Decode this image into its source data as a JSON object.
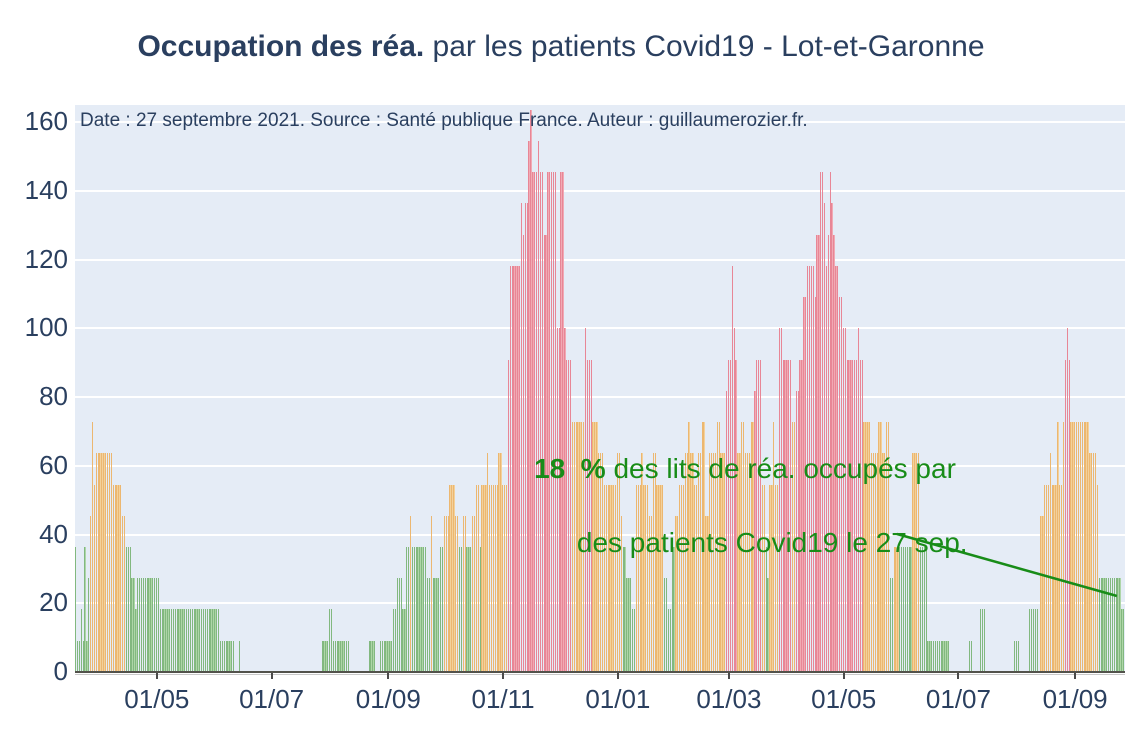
{
  "title": {
    "bold": "Occupation des réa.",
    "regular": " par les patients Covid19 - Lot-et-Garonne"
  },
  "note": "Date : 27 septembre 2021. Source : Santé publique France. Auteur : guillaumerozier.fr.",
  "annotation": {
    "bold": "18  %",
    "line1_rest": " des lits de réa. occupés par",
    "line2": "des patients Covid19 le 27 sep."
  },
  "colors": {
    "title_text": "#2a3f5f",
    "axis_text": "#2a3f5f",
    "plot_bg": "#e5ecf6",
    "gridline": "#ffffff",
    "baseline": "#52524b",
    "tick_mark": "#4a4a4a",
    "annotation_green": "#188c18",
    "trend_line": "#188c18",
    "bar_green_fill": "#aed6a8",
    "bar_green_edge": "#569b56",
    "bar_orange_fill": "#f3d19c",
    "bar_orange_edge": "#e49d44",
    "bar_red_fill": "#f1aab4",
    "bar_red_edge": "#df6379"
  },
  "chart_data": {
    "type": "bar",
    "title": "Occupation des réa. par les patients Covid19 - Lot-et-Garonne",
    "ylabel": "% des lits de réa. occupés par des patients Covid19",
    "xlabel": "",
    "grid": true,
    "legend": "none",
    "ylim": [
      0,
      165
    ],
    "yticks": [
      0,
      20,
      40,
      60,
      80,
      100,
      120,
      140,
      160
    ],
    "x_start_date": "2020-03-19",
    "x_end_date": "2021-09-27",
    "last_value_pct": 18,
    "last_value_date": "27 sep.",
    "xticks": [
      {
        "label": "01/05",
        "day": 43
      },
      {
        "label": "01/07",
        "day": 104
      },
      {
        "label": "01/09",
        "day": 166
      },
      {
        "label": "01/11",
        "day": 227
      },
      {
        "label": "01/01",
        "day": 288
      },
      {
        "label": "01/03",
        "day": 347
      },
      {
        "label": "01/05",
        "day": 408
      },
      {
        "label": "01/07",
        "day": 469
      },
      {
        "label": "01/09",
        "day": 531
      }
    ],
    "trend_line": {
      "x1": 897,
      "y1": 534,
      "x2": 1117,
      "y2": 596
    },
    "annotation_center": {
      "x": 745,
      "y": 488
    },
    "daily_segments_pct_days_color": [
      [
        36.4,
        1,
        "g"
      ],
      [
        9.1,
        2,
        "g"
      ],
      [
        18.2,
        1,
        "g"
      ],
      [
        9.1,
        1,
        "g"
      ],
      [
        36.4,
        1,
        "g"
      ],
      [
        9.1,
        1,
        "g"
      ],
      [
        27.3,
        1,
        "g"
      ],
      [
        45.5,
        1,
        "o"
      ],
      [
        72.7,
        1,
        "o"
      ],
      [
        54.5,
        1,
        "o"
      ],
      [
        63.6,
        9,
        "o"
      ],
      [
        54.5,
        5,
        "o"
      ],
      [
        45.5,
        2,
        "o"
      ],
      [
        36.4,
        3,
        "g"
      ],
      [
        27.3,
        2,
        "g"
      ],
      [
        18.2,
        1,
        "g"
      ],
      [
        27.3,
        12,
        "g"
      ],
      [
        18.2,
        32,
        "g"
      ],
      [
        9.1,
        8,
        "g"
      ],
      [
        0,
        2,
        "g"
      ],
      [
        9.1,
        1,
        "g"
      ],
      [
        0,
        43,
        "g"
      ],
      [
        9.1,
        4,
        "g"
      ],
      [
        18.2,
        2,
        "g"
      ],
      [
        9.1,
        9,
        "g"
      ],
      [
        0,
        10,
        "g"
      ],
      [
        9.1,
        4,
        "g"
      ],
      [
        0,
        2,
        "g"
      ],
      [
        9.1,
        7,
        "g"
      ],
      [
        18.2,
        2,
        "g"
      ],
      [
        27.3,
        3,
        "g"
      ],
      [
        18.2,
        2,
        "g"
      ],
      [
        36.4,
        2,
        "g"
      ],
      [
        45.5,
        1,
        "o"
      ],
      [
        36.4,
        8,
        "g"
      ],
      [
        27.3,
        2,
        "g"
      ],
      [
        45.5,
        1,
        "o"
      ],
      [
        27.3,
        4,
        "g"
      ],
      [
        36.4,
        2,
        "g"
      ],
      [
        45.5,
        3,
        "o"
      ],
      [
        54.5,
        3,
        "o"
      ],
      [
        45.5,
        2,
        "o"
      ],
      [
        36.4,
        2,
        "g"
      ],
      [
        45.5,
        2,
        "o"
      ],
      [
        36.4,
        3,
        "g"
      ],
      [
        45.5,
        2,
        "o"
      ],
      [
        54.5,
        2,
        "o"
      ],
      [
        36.4,
        1,
        "g"
      ],
      [
        54.5,
        3,
        "o"
      ],
      [
        63.6,
        1,
        "o"
      ],
      [
        54.5,
        5,
        "o"
      ],
      [
        63.6,
        2,
        "o"
      ],
      [
        54.5,
        3,
        "o"
      ],
      [
        90.9,
        1,
        "r"
      ],
      [
        118.2,
        6,
        "r"
      ],
      [
        136.4,
        1,
        "r"
      ],
      [
        127.3,
        1,
        "r"
      ],
      [
        136.4,
        2,
        "r"
      ],
      [
        154.5,
        1,
        "r"
      ],
      [
        163.6,
        1,
        "r"
      ],
      [
        145.5,
        3,
        "r"
      ],
      [
        154.5,
        1,
        "r"
      ],
      [
        145.5,
        2,
        "r"
      ],
      [
        127.3,
        2,
        "r"
      ],
      [
        145.5,
        5,
        "r"
      ],
      [
        100,
        2,
        "r"
      ],
      [
        145.5,
        2,
        "r"
      ],
      [
        100,
        1,
        "r"
      ],
      [
        90.9,
        3,
        "r"
      ],
      [
        72.7,
        7,
        "o"
      ],
      [
        100,
        1,
        "r"
      ],
      [
        90.9,
        3,
        "r"
      ],
      [
        72.7,
        3,
        "o"
      ],
      [
        63.6,
        3,
        "o"
      ],
      [
        54.5,
        3,
        "o"
      ],
      [
        54.5,
        4,
        "o"
      ],
      [
        63.6,
        2,
        "o"
      ],
      [
        45.5,
        1,
        "o"
      ],
      [
        36.4,
        2,
        "g"
      ],
      [
        27.3,
        3,
        "g"
      ],
      [
        18.2,
        2,
        "g"
      ],
      [
        54.5,
        3,
        "o"
      ],
      [
        63.6,
        1,
        "o"
      ],
      [
        54.5,
        3,
        "o"
      ],
      [
        45.5,
        2,
        "o"
      ],
      [
        63.6,
        2,
        "o"
      ],
      [
        54.5,
        4,
        "o"
      ],
      [
        27.3,
        2,
        "g"
      ],
      [
        18.2,
        2,
        "g"
      ],
      [
        36.4,
        2,
        "g"
      ],
      [
        45.5,
        2,
        "o"
      ],
      [
        54.5,
        3,
        "o"
      ],
      [
        63.6,
        2,
        "o"
      ],
      [
        72.7,
        1,
        "o"
      ],
      [
        63.6,
        2,
        "o"
      ],
      [
        54.5,
        2,
        "o"
      ],
      [
        63.6,
        2,
        "o"
      ],
      [
        72.7,
        2,
        "o"
      ],
      [
        45.5,
        2,
        "o"
      ],
      [
        63.6,
        4,
        "o"
      ],
      [
        72.7,
        2,
        "o"
      ],
      [
        63.6,
        3,
        "o"
      ],
      [
        81.8,
        1,
        "r"
      ],
      [
        90.9,
        2,
        "r"
      ],
      [
        118.2,
        1,
        "r"
      ],
      [
        100,
        1,
        "r"
      ],
      [
        90.9,
        1,
        "r"
      ],
      [
        63.6,
        2,
        "o"
      ],
      [
        72.7,
        2,
        "o"
      ],
      [
        63.6,
        3,
        "o"
      ],
      [
        72.7,
        2,
        "o"
      ],
      [
        81.8,
        1,
        "r"
      ],
      [
        90.9,
        3,
        "r"
      ],
      [
        54.5,
        2,
        "o"
      ],
      [
        36.4,
        1,
        "g"
      ],
      [
        27.3,
        1,
        "g"
      ],
      [
        54.5,
        2,
        "o"
      ],
      [
        72.7,
        1,
        "o"
      ],
      [
        54.5,
        2,
        "o"
      ],
      [
        100,
        2,
        "r"
      ],
      [
        90.9,
        5,
        "r"
      ],
      [
        72.7,
        2,
        "o"
      ],
      [
        81.8,
        2,
        "r"
      ],
      [
        90.9,
        2,
        "r"
      ],
      [
        109.1,
        2,
        "r"
      ],
      [
        118.2,
        4,
        "r"
      ],
      [
        109.1,
        1,
        "r"
      ],
      [
        127.3,
        2,
        "r"
      ],
      [
        145.5,
        2,
        "r"
      ],
      [
        136.4,
        1,
        "r"
      ],
      [
        118.2,
        1,
        "r"
      ],
      [
        127.3,
        1,
        "r"
      ],
      [
        145.5,
        1,
        "r"
      ],
      [
        136.4,
        1,
        "r"
      ],
      [
        127.3,
        1,
        "r"
      ],
      [
        118.2,
        2,
        "r"
      ],
      [
        109.1,
        2,
        "r"
      ],
      [
        100,
        2,
        "r"
      ],
      [
        90.9,
        6,
        "r"
      ],
      [
        100,
        1,
        "r"
      ],
      [
        90.9,
        2,
        "r"
      ],
      [
        72.7,
        4,
        "o"
      ],
      [
        63.6,
        4,
        "o"
      ],
      [
        72.7,
        2,
        "o"
      ],
      [
        63.6,
        2,
        "o"
      ],
      [
        72.7,
        2,
        "o"
      ],
      [
        27.3,
        2,
        "g"
      ],
      [
        36.4,
        3,
        "o"
      ],
      [
        36.4,
        7,
        "g"
      ],
      [
        63.6,
        4,
        "o"
      ],
      [
        36.4,
        4,
        "g"
      ],
      [
        9.1,
        12,
        "g"
      ],
      [
        0,
        10,
        "g"
      ],
      [
        9.1,
        2,
        "g"
      ],
      [
        0,
        4,
        "g"
      ],
      [
        18.2,
        3,
        "g"
      ],
      [
        0,
        15,
        "g"
      ],
      [
        9.1,
        3,
        "g"
      ],
      [
        0,
        5,
        "g"
      ],
      [
        18.2,
        5,
        "g"
      ],
      [
        0,
        1,
        "g"
      ],
      [
        45.5,
        2,
        "o"
      ],
      [
        54.5,
        3,
        "o"
      ],
      [
        63.6,
        1,
        "o"
      ],
      [
        54.5,
        3,
        "o"
      ],
      [
        72.7,
        1,
        "o"
      ],
      [
        54.5,
        2,
        "o"
      ],
      [
        72.7,
        1,
        "o"
      ],
      [
        90.9,
        1,
        "r"
      ],
      [
        100,
        1,
        "r"
      ],
      [
        90.9,
        1,
        "r"
      ],
      [
        72.7,
        10,
        "o"
      ],
      [
        63.6,
        4,
        "o"
      ],
      [
        54.5,
        1,
        "o"
      ],
      [
        27.3,
        12,
        "g"
      ],
      [
        18.2,
        2,
        "g"
      ]
    ]
  }
}
